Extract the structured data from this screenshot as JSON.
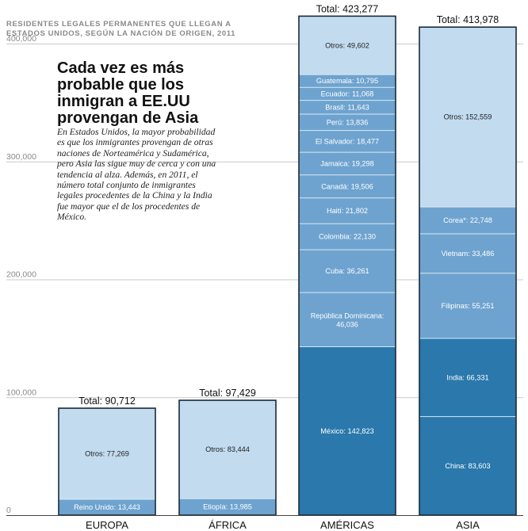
{
  "chart_data": {
    "type": "bar",
    "stacked": true,
    "title": "RESIDENTES LEGALES PERMANENTES QUE LLEGAN A ESTADOS UNIDOS, SEGÚN LA NACIÓN DE ORIGEN, 2011",
    "headline": "Cada vez es más probable que los inmigran a EE.UU provengan de Asia",
    "description": "En Estados Unidos, la mayor probabilidad es que los inmigrantes provengan de otras naciones de Norteamérica y Sudamérica, pero Asia las sigue muy de cerca y con una tendencia al alza. Además, en 2011, el número total conjunto de inmigrantes legales procedentes de la China y la India fue mayor que el de los procedentes de México.",
    "ylim": [
      0,
      400000
    ],
    "y_ticks": [
      {
        "value": 0,
        "label": "0"
      },
      {
        "value": 100000,
        "label": "100,000"
      },
      {
        "value": 200000,
        "label": "200,000"
      },
      {
        "value": 300000,
        "label": "300,000"
      },
      {
        "value": 400000,
        "label": "400,000"
      }
    ],
    "grid": true,
    "colors": {
      "dark": "#2a78ac",
      "medium": "#6ea3cf",
      "light": "#c2dbef",
      "border": "#1b2a38",
      "segment_line": "#dbe8f3",
      "grid": "#c9c9c9"
    },
    "categories": [
      {
        "name": "EUROPA",
        "total_label": "Total: 90,712",
        "segments": [
          {
            "label": "Reino Unido: 13,443",
            "value": 13443,
            "shade": "medium"
          },
          {
            "label": "Otros: 77,269",
            "value": 77269,
            "shade": "light"
          }
        ]
      },
      {
        "name": "ÁFRICA",
        "total_label": "Total: 97,429",
        "segments": [
          {
            "label": "Etiopía: 13,985",
            "value": 13985,
            "shade": "medium"
          },
          {
            "label": "Otros: 83,444",
            "value": 83444,
            "shade": "light"
          }
        ]
      },
      {
        "name": "AMÉRICAS",
        "total_label": "Total: 423,277",
        "segments": [
          {
            "label": "México: 142,823",
            "value": 142823,
            "shade": "dark"
          },
          {
            "label": "República Dominicana: 46,036",
            "value": 46036,
            "shade": "medium"
          },
          {
            "label": "Cuba: 36,261",
            "value": 36261,
            "shade": "medium"
          },
          {
            "label": "Colombia: 22,130",
            "value": 22130,
            "shade": "medium"
          },
          {
            "label": "Haití: 21,802",
            "value": 21802,
            "shade": "medium"
          },
          {
            "label": "Canadá: 19,506",
            "value": 19506,
            "shade": "medium"
          },
          {
            "label": "Jamaica: 19,298",
            "value": 19298,
            "shade": "medium"
          },
          {
            "label": "El Salvador: 18,477",
            "value": 18477,
            "shade": "medium"
          },
          {
            "label": "Perú: 13,836",
            "value": 13836,
            "shade": "medium"
          },
          {
            "label": "Brasil: 11,643",
            "value": 11643,
            "shade": "medium"
          },
          {
            "label": "Ecuador: 11,068",
            "value": 11068,
            "shade": "medium"
          },
          {
            "label": "Guatemala: 10,795",
            "value": 10795,
            "shade": "medium"
          },
          {
            "label": "Otros: 49,602",
            "value": 49602,
            "shade": "light"
          }
        ]
      },
      {
        "name": "ASIA",
        "total_label": "Total: 413,978",
        "segments": [
          {
            "label": "China: 83,603",
            "value": 83603,
            "shade": "dark"
          },
          {
            "label": "India: 66,331",
            "value": 66331,
            "shade": "dark"
          },
          {
            "label": "Filipinas: 55,251",
            "value": 55251,
            "shade": "medium"
          },
          {
            "label": "Vietnam: 33,486",
            "value": 33486,
            "shade": "medium"
          },
          {
            "label": "Corea*: 22,748",
            "value": 22748,
            "shade": "medium"
          },
          {
            "label": "Otros: 152,559",
            "value": 152559,
            "shade": "light"
          }
        ]
      }
    ]
  }
}
